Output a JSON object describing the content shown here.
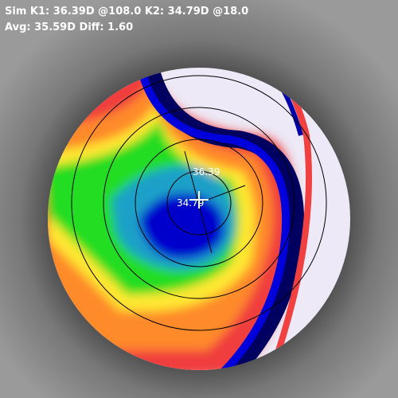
{
  "header": {
    "line1": "Sim K1: 36.39D @108.0 K2: 34.79D @18.0",
    "line2": "Avg: 35.59D Diff: 1.60"
  },
  "map": {
    "labels": [
      "36.39",
      "34.79"
    ]
  }
}
